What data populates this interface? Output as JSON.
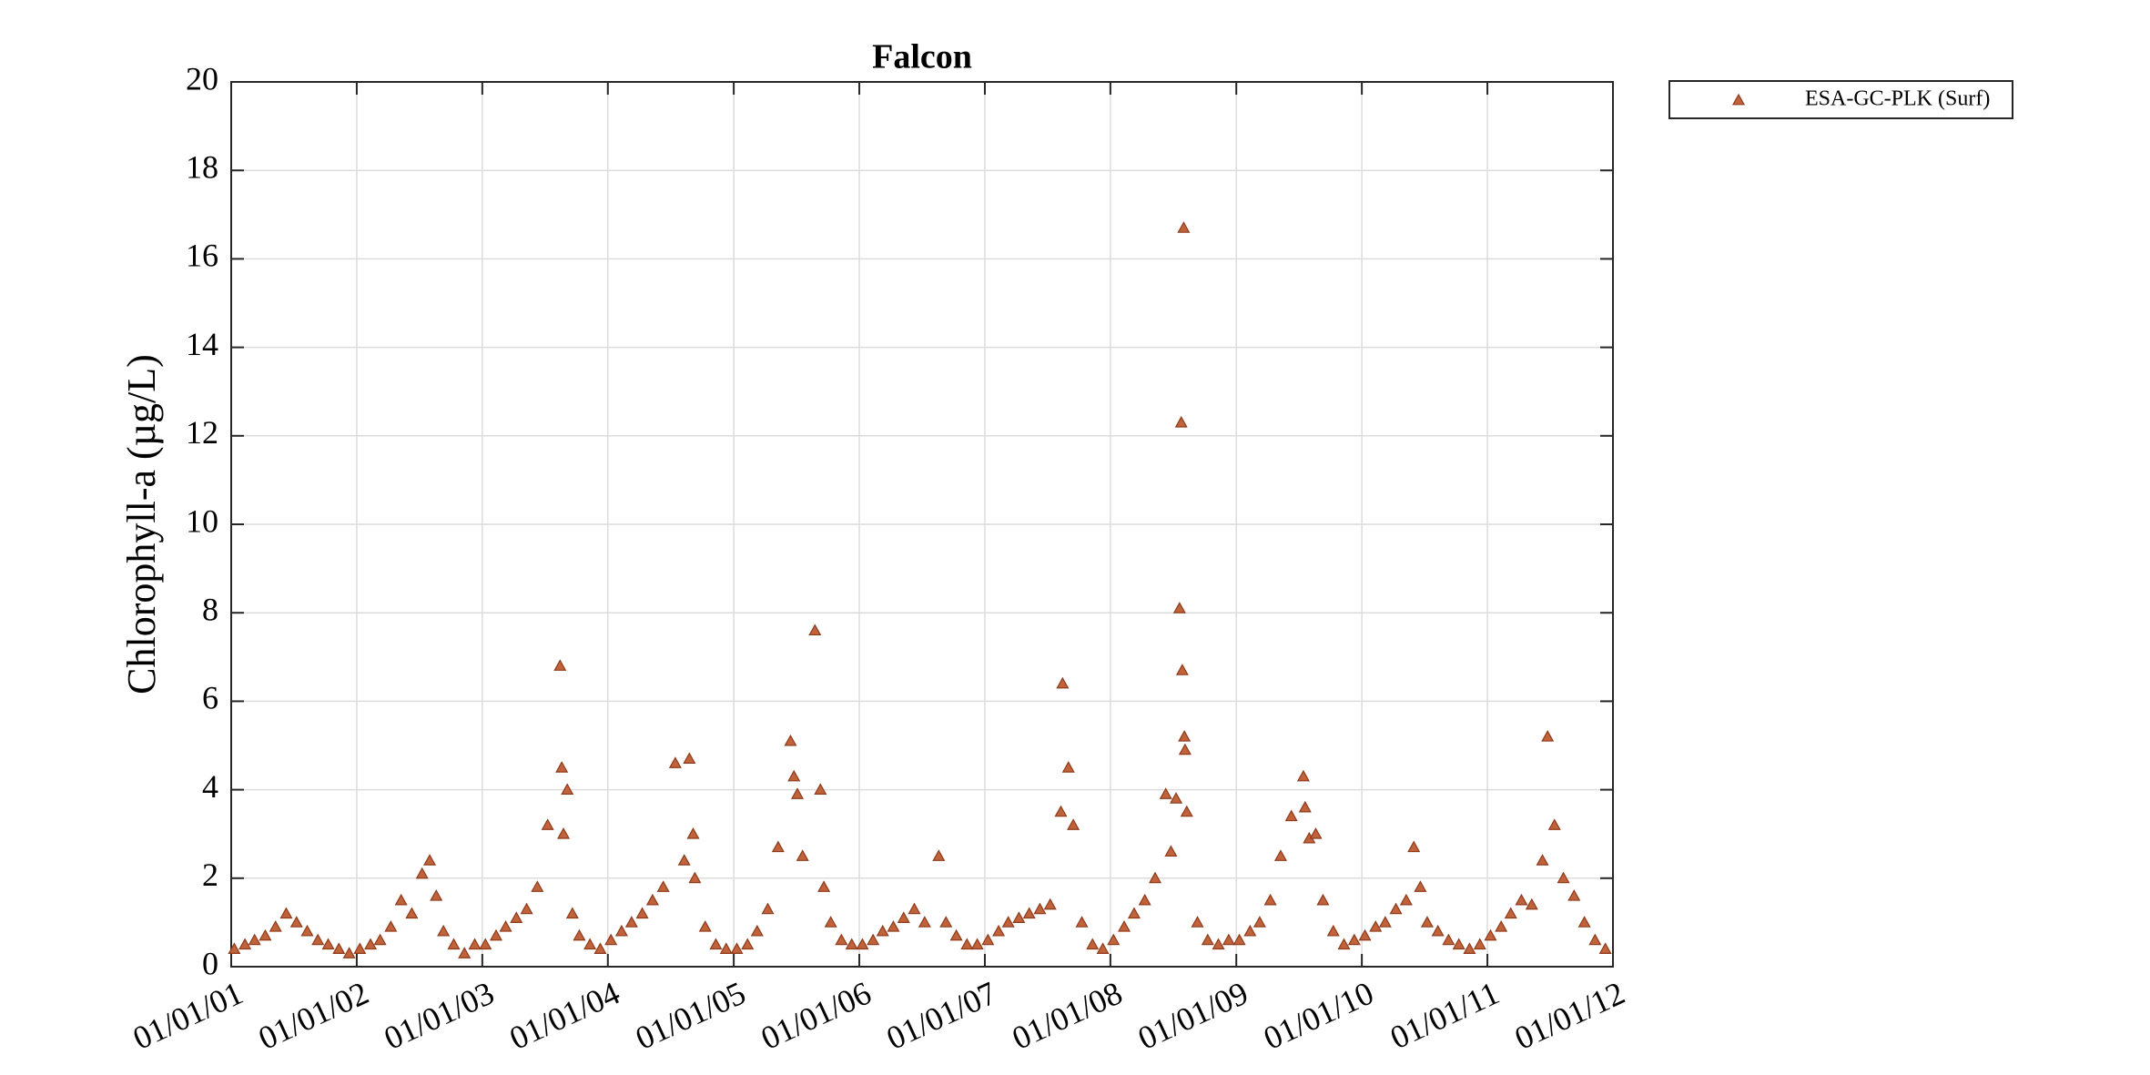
{
  "chart_data": {
    "type": "scatter",
    "title": "Falcon",
    "y_label": "Chlorophyll-a (µg/L)",
    "x": [
      "2001-01-10",
      "2001-02-10",
      "2001-03-10",
      "2001-04-10",
      "2001-05-10",
      "2001-06-10",
      "2001-07-10",
      "2001-08-10",
      "2001-09-10",
      "2001-10-10",
      "2001-11-10",
      "2001-12-10",
      "2002-01-10",
      "2002-02-10",
      "2002-03-10",
      "2002-04-10",
      "2002-05-10",
      "2002-06-10",
      "2002-07-10",
      "2002-08-01",
      "2002-08-20",
      "2002-09-10",
      "2002-10-10",
      "2002-11-10",
      "2002-12-10",
      "2003-01-10",
      "2003-02-10",
      "2003-03-10",
      "2003-04-10",
      "2003-05-10",
      "2003-06-10",
      "2003-07-10",
      "2003-08-15",
      "2003-08-20",
      "2003-08-25",
      "2003-09-05",
      "2003-09-20",
      "2003-10-10",
      "2003-11-10",
      "2003-12-10",
      "2004-01-10",
      "2004-02-10",
      "2004-03-10",
      "2004-04-10",
      "2004-05-10",
      "2004-06-10",
      "2004-07-15",
      "2004-08-10",
      "2004-08-25",
      "2004-09-05",
      "2004-09-10",
      "2004-10-10",
      "2004-11-10",
      "2004-12-10",
      "2005-01-10",
      "2005-02-10",
      "2005-03-10",
      "2005-04-10",
      "2005-05-10",
      "2005-06-15",
      "2005-06-25",
      "2005-07-05",
      "2005-07-20",
      "2005-08-25",
      "2005-09-10",
      "2005-09-20",
      "2005-10-10",
      "2005-11-10",
      "2005-12-10",
      "2006-01-10",
      "2006-02-10",
      "2006-03-10",
      "2006-04-10",
      "2006-05-10",
      "2006-06-10",
      "2006-07-10",
      "2006-08-20",
      "2006-09-10",
      "2006-10-10",
      "2006-11-10",
      "2006-12-10",
      "2007-01-10",
      "2007-02-10",
      "2007-03-10",
      "2007-04-10",
      "2007-05-10",
      "2007-06-10",
      "2007-07-10",
      "2007-08-10",
      "2007-08-15",
      "2007-09-01",
      "2007-09-15",
      "2007-10-10",
      "2007-11-10",
      "2007-12-10",
      "2008-01-10",
      "2008-02-10",
      "2008-03-10",
      "2008-04-10",
      "2008-05-10",
      "2008-06-10",
      "2008-06-25",
      "2008-07-10",
      "2008-07-20",
      "2008-07-25",
      "2008-07-28",
      "2008-08-01",
      "2008-08-03",
      "2008-08-05",
      "2008-08-10",
      "2008-09-10",
      "2008-10-10",
      "2008-11-10",
      "2008-12-10",
      "2009-01-10",
      "2009-02-10",
      "2009-03-10",
      "2009-04-10",
      "2009-05-10",
      "2009-06-10",
      "2009-07-15",
      "2009-07-20",
      "2009-08-01",
      "2009-08-20",
      "2009-09-10",
      "2009-10-10",
      "2009-11-10",
      "2009-12-10",
      "2010-01-10",
      "2010-02-10",
      "2010-03-10",
      "2010-04-10",
      "2010-05-10",
      "2010-06-01",
      "2010-06-20",
      "2010-07-10",
      "2010-08-10",
      "2010-09-10",
      "2010-10-10",
      "2010-11-10",
      "2010-12-10",
      "2011-01-10",
      "2011-02-10",
      "2011-03-10",
      "2011-04-10",
      "2011-05-10",
      "2011-06-10",
      "2011-06-25",
      "2011-07-15",
      "2011-08-10",
      "2011-09-10",
      "2011-10-10",
      "2011-11-10",
      "2011-12-10"
    ],
    "series": [
      {
        "name": "ESA-GC-PLK (Surf)",
        "color": "#c0623a",
        "values": [
          0.4,
          0.5,
          0.6,
          0.7,
          0.9,
          1.2,
          1.0,
          0.8,
          0.6,
          0.5,
          0.4,
          0.3,
          0.4,
          0.5,
          0.6,
          0.9,
          1.5,
          1.2,
          2.1,
          2.4,
          1.6,
          0.8,
          0.5,
          0.3,
          0.5,
          0.5,
          0.7,
          0.9,
          1.1,
          1.3,
          1.8,
          3.2,
          6.8,
          4.5,
          3.0,
          4.0,
          1.2,
          0.7,
          0.5,
          0.4,
          0.6,
          0.8,
          1.0,
          1.2,
          1.5,
          1.8,
          4.6,
          2.4,
          4.7,
          3.0,
          2.0,
          0.9,
          0.5,
          0.4,
          0.4,
          0.5,
          0.8,
          1.3,
          2.7,
          5.1,
          4.3,
          3.9,
          2.5,
          7.6,
          4.0,
          1.8,
          1.0,
          0.6,
          0.5,
          0.5,
          0.6,
          0.8,
          0.9,
          1.1,
          1.3,
          1.0,
          2.5,
          1.0,
          0.7,
          0.5,
          0.5,
          0.6,
          0.8,
          1.0,
          1.1,
          1.2,
          1.3,
          1.4,
          3.5,
          6.4,
          4.5,
          3.2,
          1.0,
          0.5,
          0.4,
          0.6,
          0.9,
          1.2,
          1.5,
          2.0,
          3.9,
          2.6,
          3.8,
          8.1,
          12.3,
          6.7,
          16.7,
          5.2,
          4.9,
          3.5,
          1.0,
          0.6,
          0.5,
          0.6,
          0.6,
          0.8,
          1.0,
          1.5,
          2.5,
          3.4,
          4.3,
          3.6,
          2.9,
          3.0,
          1.5,
          0.8,
          0.5,
          0.6,
          0.7,
          0.9,
          1.0,
          1.3,
          1.5,
          2.7,
          1.8,
          1.0,
          0.8,
          0.6,
          0.5,
          0.4,
          0.5,
          0.7,
          0.9,
          1.2,
          1.5,
          1.4,
          2.4,
          5.2,
          3.2,
          2.0,
          1.6,
          1.0,
          0.6,
          0.4
        ]
      }
    ],
    "xlim": [
      "2001-01-01",
      "2012-01-01"
    ],
    "xticks": [
      {
        "value": "2001-01-01",
        "label": "01/01/01"
      },
      {
        "value": "2002-01-01",
        "label": "01/01/02"
      },
      {
        "value": "2003-01-01",
        "label": "01/01/03"
      },
      {
        "value": "2004-01-01",
        "label": "01/01/04"
      },
      {
        "value": "2005-01-01",
        "label": "01/01/05"
      },
      {
        "value": "2006-01-01",
        "label": "01/01/06"
      },
      {
        "value": "2007-01-01",
        "label": "01/01/07"
      },
      {
        "value": "2008-01-01",
        "label": "01/01/08"
      },
      {
        "value": "2009-01-01",
        "label": "01/01/09"
      },
      {
        "value": "2010-01-01",
        "label": "01/01/10"
      },
      {
        "value": "2011-01-01",
        "label": "01/01/11"
      },
      {
        "value": "2012-01-01",
        "label": "01/01/12"
      }
    ],
    "ylim": [
      0,
      20
    ],
    "yticks": [
      0,
      2,
      4,
      6,
      8,
      10,
      12,
      14,
      16,
      18,
      20
    ],
    "grid": true,
    "legend": "outside-top-right"
  }
}
